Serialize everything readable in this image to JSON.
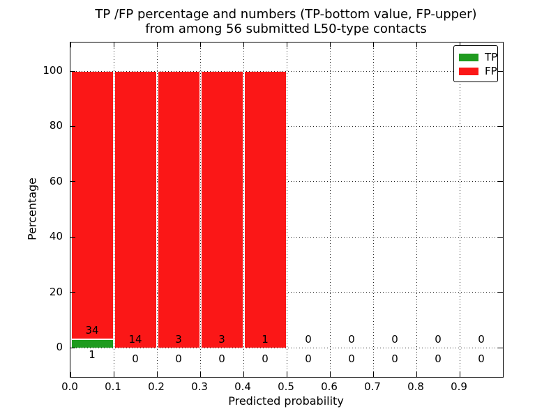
{
  "chart_data": {
    "type": "bar",
    "stacked": true,
    "title_line1": "TP /FP percentage and numbers (TP-bottom value, FP-upper)",
    "title_line2": "from among 56 submitted L50-type contacts",
    "xlabel": "Predicted probability",
    "ylabel": "Percentage",
    "xlim": [
      0.0,
      1.0
    ],
    "ylim": [
      -11,
      111
    ],
    "grid": "dotted",
    "bin_edges": [
      0.0,
      0.1,
      0.2,
      0.3,
      0.4,
      0.5,
      0.6,
      0.7,
      0.8,
      0.9,
      1.0
    ],
    "x_ticks": [
      "0.0",
      "0.1",
      "0.2",
      "0.3",
      "0.4",
      "0.5",
      "0.6",
      "0.7",
      "0.8",
      "0.9"
    ],
    "y_ticks": [
      "0",
      "20",
      "40",
      "60",
      "80",
      "100"
    ],
    "y_tick_values": [
      0,
      20,
      40,
      60,
      80,
      100
    ],
    "series": [
      {
        "name": "TP",
        "color": "#1f9b1f",
        "counts": [
          1,
          0,
          0,
          0,
          0,
          0,
          0,
          0,
          0,
          0
        ],
        "percentages": [
          2.86,
          0,
          0,
          0,
          0,
          0,
          0,
          0,
          0,
          0
        ]
      },
      {
        "name": "FP",
        "color": "#fb1717",
        "counts": [
          34,
          14,
          3,
          3,
          1,
          0,
          0,
          0,
          0,
          0
        ],
        "percentages": [
          97.14,
          100,
          100,
          100,
          100,
          0,
          0,
          0,
          0,
          0
        ]
      }
    ],
    "total_submitted": 56,
    "legend": {
      "position": "upper right",
      "entries": [
        {
          "label": "TP",
          "color": "#1f9b1f"
        },
        {
          "label": "FP",
          "color": "#fb1717"
        }
      ]
    }
  }
}
